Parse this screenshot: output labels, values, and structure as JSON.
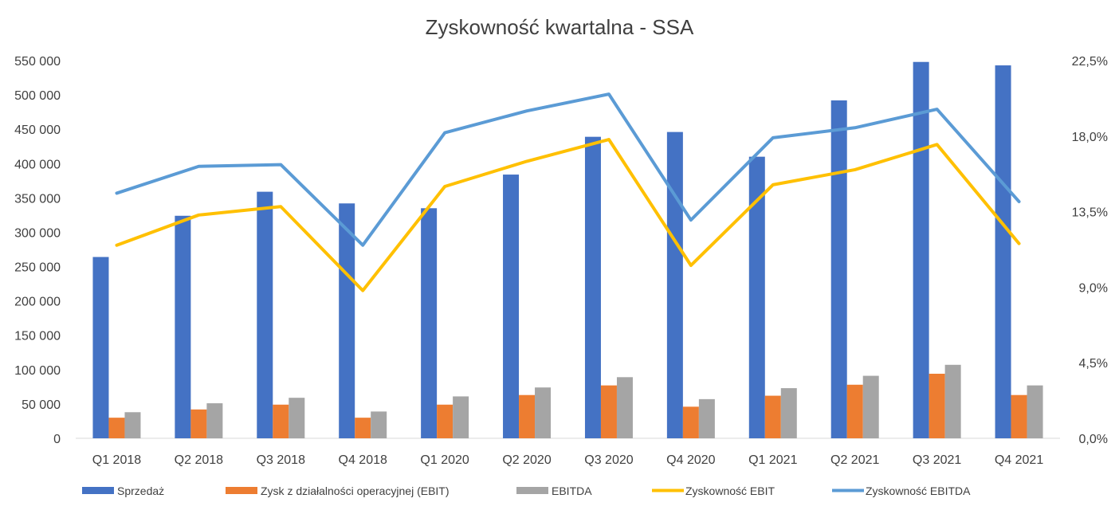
{
  "chart_data": {
    "type": "bar",
    "title": "Zyskowność kwartalna - SSA",
    "categories": [
      "Q1 2018",
      "Q2 2018",
      "Q3 2018",
      "Q4 2018",
      "Q1 2020",
      "Q2 2020",
      "Q3 2020",
      "Q4 2020",
      "Q1 2021",
      "Q2 2021",
      "Q3 2021",
      "Q4 2021"
    ],
    "series": [
      {
        "name": "Sprzedaż",
        "type": "bar",
        "axis": "left",
        "color": "#4472C4",
        "values": [
          264000,
          324000,
          359000,
          342000,
          335000,
          384000,
          439000,
          446000,
          410000,
          492000,
          548000,
          543000
        ]
      },
      {
        "name": "Zysk z działalności operacyjnej (EBIT)",
        "type": "bar",
        "axis": "left",
        "color": "#ED7D31",
        "values": [
          30000,
          42000,
          49000,
          30000,
          49000,
          63000,
          77000,
          46000,
          62000,
          78000,
          94000,
          63000
        ]
      },
      {
        "name": "EBITDA",
        "type": "bar",
        "axis": "left",
        "color": "#A5A5A5",
        "values": [
          38000,
          51000,
          59000,
          39000,
          61000,
          74000,
          89000,
          57000,
          73000,
          91000,
          107000,
          77000
        ]
      },
      {
        "name": "Zyskowność EBIT",
        "type": "line",
        "axis": "right",
        "color": "#FFC000",
        "values": [
          11.5,
          13.3,
          13.8,
          8.8,
          15.0,
          16.5,
          17.8,
          10.3,
          15.1,
          16.0,
          17.5,
          11.6
        ]
      },
      {
        "name": "Zyskowność EBITDA",
        "type": "line",
        "axis": "right",
        "color": "#5B9BD5",
        "values": [
          14.6,
          16.2,
          16.3,
          11.5,
          18.2,
          19.5,
          20.5,
          13.0,
          17.9,
          18.5,
          19.6,
          14.1
        ]
      }
    ],
    "y_left": {
      "ylim": [
        0,
        550000
      ],
      "ticks": [
        "0",
        "50 000",
        "100 000",
        "150 000",
        "200 000",
        "250 000",
        "300 000",
        "350 000",
        "400 000",
        "450 000",
        "500 000",
        "550 000"
      ]
    },
    "y_right": {
      "ylim": [
        0,
        22.5
      ],
      "ticks": [
        "0,0%",
        "4,5%",
        "9,0%",
        "13,5%",
        "18,0%",
        "22,5%"
      ]
    },
    "grid": false,
    "legend_position": "bottom"
  }
}
